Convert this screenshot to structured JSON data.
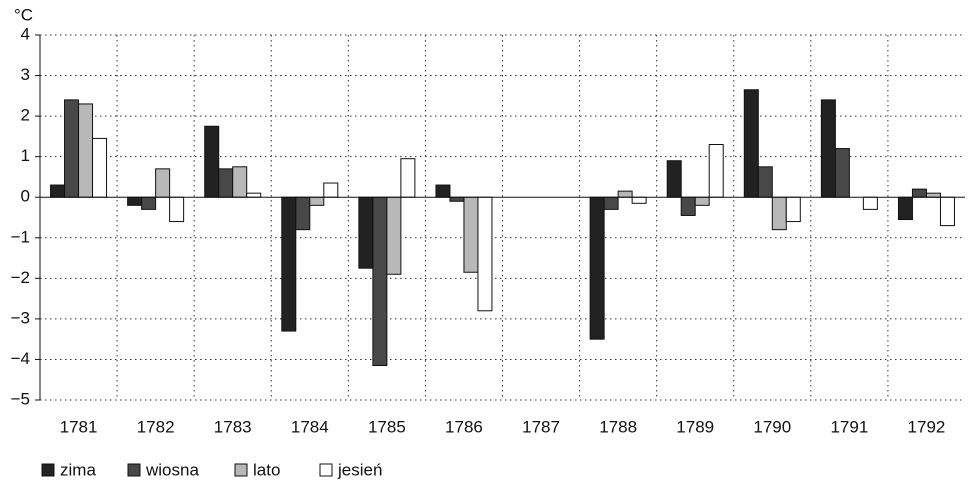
{
  "chart_data": {
    "type": "bar",
    "ylabel": "°C",
    "categories": [
      "1781",
      "1782",
      "1783",
      "1784",
      "1785",
      "1786",
      "1787",
      "1788",
      "1789",
      "1790",
      "1791",
      "1792"
    ],
    "series": [
      {
        "name": "zima",
        "color": "#222222",
        "values": [
          0.3,
          -0.2,
          1.75,
          -3.3,
          -1.75,
          0.3,
          null,
          -3.5,
          0.9,
          2.65,
          2.4,
          -0.55
        ]
      },
      {
        "name": "wiosna",
        "color": "#484848",
        "values": [
          2.4,
          -0.3,
          0.7,
          -0.8,
          -4.15,
          -0.1,
          null,
          -0.3,
          -0.45,
          0.75,
          1.2,
          0.2
        ]
      },
      {
        "name": "lato",
        "color": "#b8b8b8",
        "values": [
          2.3,
          0.7,
          0.75,
          -0.2,
          -1.9,
          -1.85,
          null,
          0.15,
          -0.2,
          -0.8,
          0,
          0.1
        ]
      },
      {
        "name": "jesień",
        "color": "#ffffff",
        "values": [
          1.45,
          -0.6,
          0.1,
          0.35,
          0.95,
          -2.8,
          null,
          -0.15,
          1.3,
          -0.6,
          -0.3,
          -0.7
        ]
      }
    ],
    "ylim": [
      -5,
      4
    ],
    "yticks": [
      {
        "value": -5,
        "label": "−5"
      },
      {
        "value": -4,
        "label": "−4"
      },
      {
        "value": -3,
        "label": "−3"
      },
      {
        "value": -2,
        "label": "−2"
      },
      {
        "value": -1,
        "label": "−1"
      },
      0,
      1,
      2,
      3,
      4
    ],
    "grid": true,
    "legend": "bottom-left"
  }
}
